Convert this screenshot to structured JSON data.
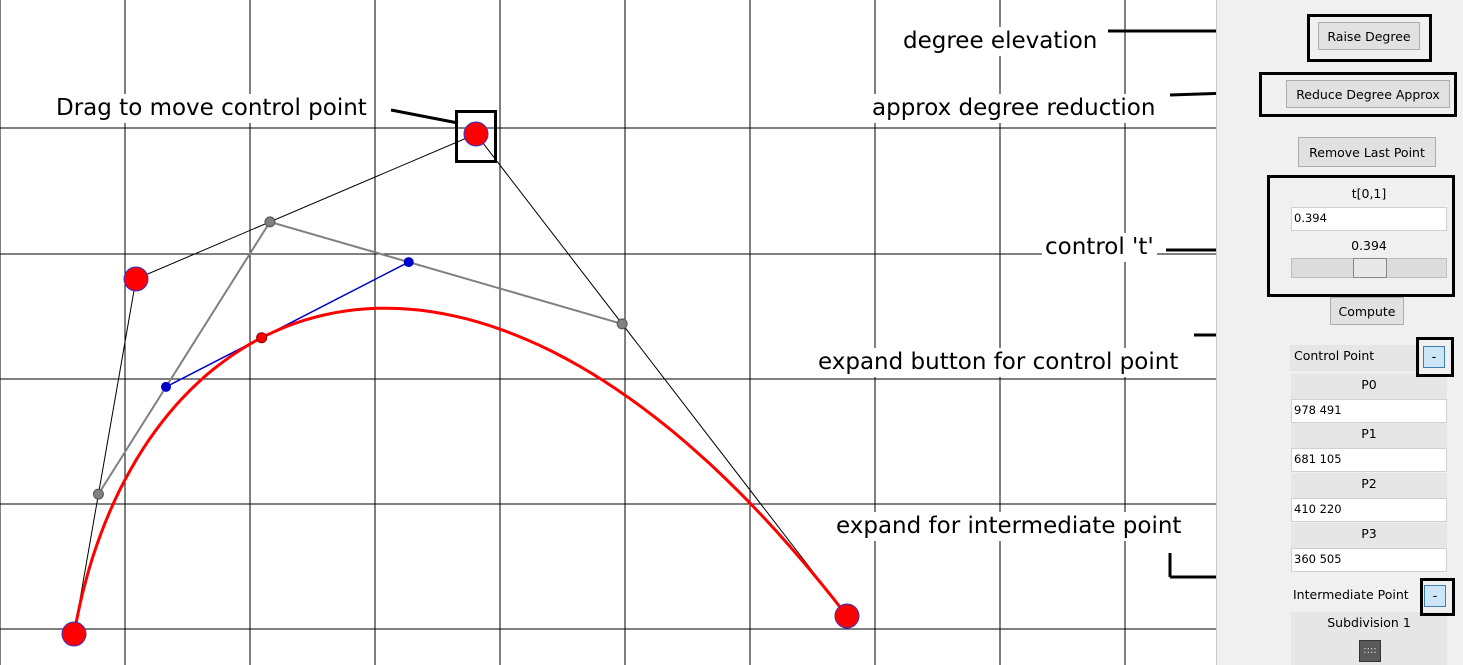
{
  "panel": {
    "raise_degree": "Raise Degree",
    "reduce_degree": "Reduce Degree Approx",
    "remove_last_point": "Remove Last Point",
    "t_label": "t[0,1]",
    "t_value": "0.394",
    "slider_value_label": "0.394",
    "slider_fraction": 0.394,
    "compute": "Compute",
    "control_point_header": "Control Point",
    "control_point_expand": "-",
    "points": [
      {
        "label": "P0",
        "value": "978 491"
      },
      {
        "label": "P1",
        "value": "681 105"
      },
      {
        "label": "P2",
        "value": "410 220"
      },
      {
        "label": "P3",
        "value": "360 505"
      }
    ],
    "intermediate_header": "Intermediate Point",
    "intermediate_expand": "-",
    "subdivision_label": "Subdivision 1"
  },
  "callouts": {
    "degree_elevation": "degree elevation",
    "approx_reduction": "approx degree reduction",
    "drag_control": "Drag to move control point",
    "control_t": "control 't'",
    "expand_control": "expand button for control point",
    "expand_intermediate": "expand for intermediate point"
  },
  "colors": {
    "curve": "#ff0000",
    "control_point": "#ff0000",
    "level1": "#808080",
    "level2": "#0000cc",
    "grid": "#000000"
  }
}
